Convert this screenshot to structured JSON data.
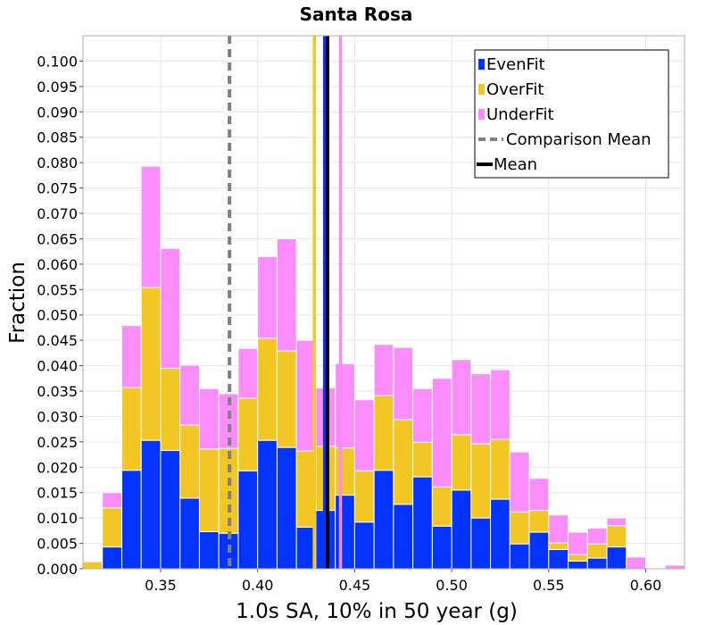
{
  "chart_data": {
    "type": "bar",
    "stacked": true,
    "title": "Santa Rosa",
    "xlabel": "1.0s SA, 10% in 50 year (g)",
    "ylabel": "Fraction",
    "xlim": [
      0.31,
      0.62
    ],
    "ylim": [
      0.0,
      0.105
    ],
    "bin_width": 0.01,
    "grid": true,
    "legend_position": "top-right",
    "x_ticks": [
      "0.35",
      "0.40",
      "0.45",
      "0.50",
      "0.55",
      "0.60"
    ],
    "y_ticks": [
      "0.000",
      "0.005",
      "0.010",
      "0.015",
      "0.020",
      "0.025",
      "0.030",
      "0.035",
      "0.040",
      "0.045",
      "0.050",
      "0.055",
      "0.060",
      "0.065",
      "0.070",
      "0.075",
      "0.080",
      "0.085",
      "0.090",
      "0.095",
      "0.100"
    ],
    "bin_centers": [
      0.315,
      0.325,
      0.335,
      0.345,
      0.355,
      0.365,
      0.375,
      0.385,
      0.395,
      0.405,
      0.415,
      0.425,
      0.435,
      0.445,
      0.455,
      0.465,
      0.475,
      0.485,
      0.495,
      0.505,
      0.515,
      0.525,
      0.535,
      0.545,
      0.555,
      0.565,
      0.575,
      0.585,
      0.595,
      0.605,
      0.615
    ],
    "series": [
      {
        "name": "EvenFit",
        "color": "#0433ff",
        "values": [
          0.0,
          0.0043,
          0.0194,
          0.0253,
          0.0233,
          0.0139,
          0.0073,
          0.007,
          0.0193,
          0.0253,
          0.0239,
          0.0082,
          0.0115,
          0.0145,
          0.0092,
          0.0194,
          0.0127,
          0.0181,
          0.0084,
          0.0155,
          0.01,
          0.0137,
          0.0049,
          0.0072,
          0.0038,
          0.0015,
          0.0021,
          0.0043,
          0.0,
          0.0,
          0.0
        ]
      },
      {
        "name": "OverFit",
        "color": "#f3c723",
        "values": [
          0.0014,
          0.0077,
          0.0163,
          0.0301,
          0.0162,
          0.0144,
          0.0163,
          0.0167,
          0.0143,
          0.0201,
          0.019,
          0.015,
          0.0126,
          0.0093,
          0.0101,
          0.0147,
          0.0167,
          0.0068,
          0.0077,
          0.0109,
          0.0146,
          0.0118,
          0.0063,
          0.0043,
          0.0013,
          0.0013,
          0.0028,
          0.0042,
          0.0,
          0.0,
          0.0
        ]
      },
      {
        "name": "UnderFit",
        "color": "#fb8cfb",
        "values": [
          0.0,
          0.003,
          0.0122,
          0.0239,
          0.0236,
          0.0118,
          0.0119,
          0.0108,
          0.0098,
          0.0161,
          0.0221,
          0.0218,
          0.0115,
          0.0166,
          0.014,
          0.0101,
          0.0142,
          0.0106,
          0.0214,
          0.0148,
          0.0138,
          0.0137,
          0.0118,
          0.0063,
          0.0055,
          0.0044,
          0.0031,
          0.0015,
          0.0023,
          0.0,
          0.0007
        ]
      }
    ],
    "lines": [
      {
        "name": "Comparison Mean",
        "x": 0.3855,
        "color": "#808080",
        "style": "dashed"
      },
      {
        "name": "Mean",
        "x": 0.436,
        "color": "#000000",
        "style": "solid"
      }
    ],
    "series_mean_lines": [
      {
        "series": "EvenFit",
        "x": 0.4345,
        "color": "#0433ff"
      },
      {
        "series": "OverFit",
        "x": 0.4292,
        "color": "#f3c723"
      },
      {
        "series": "UnderFit",
        "x": 0.4427,
        "color": "#fb8cfb"
      }
    ],
    "legend": [
      {
        "label": "EvenFit",
        "color": "#0433ff",
        "kind": "box"
      },
      {
        "label": "OverFit",
        "color": "#f3c723",
        "kind": "box"
      },
      {
        "label": "UnderFit",
        "color": "#fb8cfb",
        "kind": "box"
      },
      {
        "label": "Comparison Mean",
        "color": "#808080",
        "kind": "dashed"
      },
      {
        "label": "Mean",
        "color": "#000000",
        "kind": "line"
      }
    ]
  }
}
